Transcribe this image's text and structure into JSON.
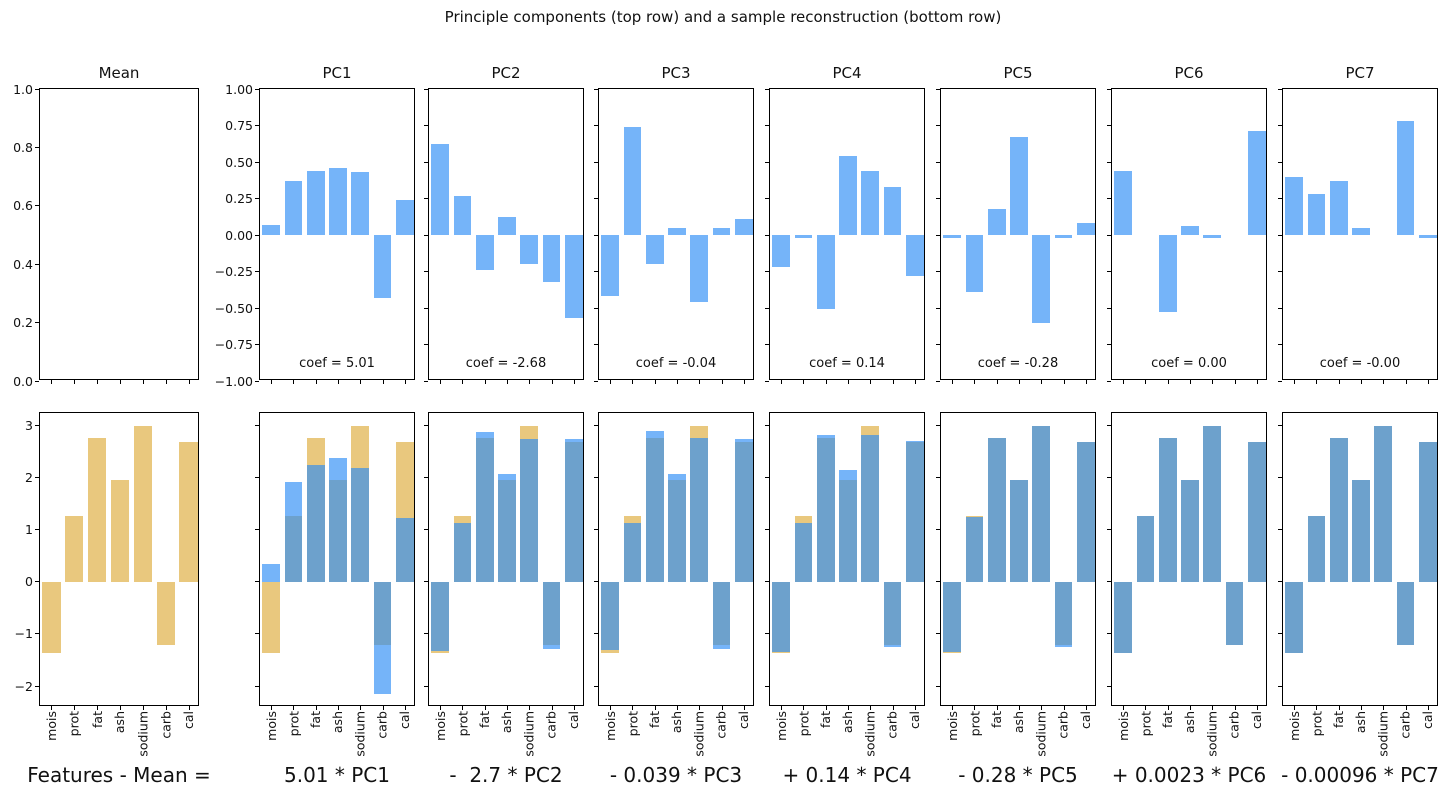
{
  "title": "Principle components (top row) and a sample reconstruction (bottom row)",
  "colors": {
    "bar_blue": "rgba(43,140,246,0.65)",
    "bar_tan": "#e9c87e",
    "axis": "#000000",
    "text": "#111111",
    "background": "#ffffff"
  },
  "formula": {
    "terms": [
      "Features - Mean =",
      "5.01 * PC1",
      "-  2.7 * PC2",
      "- 0.039 * PC3",
      "+ 0.14 * PC4",
      "- 0.28 * PC5",
      "+ 0.0023 * PC6",
      "- 0.00096 * PC7"
    ]
  },
  "chart_data": {
    "type": "bar",
    "categories": [
      "mois",
      "prot",
      "fat",
      "ash",
      "sodium",
      "carb",
      "cal"
    ],
    "top_row": {
      "description": "principal component loadings, blue bars",
      "ylim_pc": [
        -1.0,
        1.0
      ],
      "yticks_pc": [
        "1.00",
        "0.75",
        "0.50",
        "0.25",
        "0.00",
        "−0.25",
        "−0.50",
        "−0.75",
        "−1.00"
      ],
      "panels": [
        {
          "title": "Mean",
          "type": "empty",
          "ylim": [
            0.0,
            1.0
          ],
          "yticks": [
            "1.0",
            "0.8",
            "0.6",
            "0.4",
            "0.2",
            "0.0"
          ],
          "values": null,
          "coef_label": null
        },
        {
          "title": "PC1",
          "coef_label": "coef = 5.01",
          "values": [
            0.07,
            0.37,
            0.44,
            0.46,
            0.43,
            -0.43,
            0.24
          ]
        },
        {
          "title": "PC2",
          "coef_label": "coef = -2.68",
          "values": [
            0.62,
            0.27,
            -0.24,
            0.12,
            -0.2,
            -0.32,
            -0.57
          ]
        },
        {
          "title": "PC3",
          "coef_label": "coef = -0.04",
          "values": [
            -0.42,
            0.74,
            -0.2,
            0.05,
            -0.46,
            0.05,
            0.11
          ]
        },
        {
          "title": "PC4",
          "coef_label": "coef = 0.14",
          "values": [
            -0.22,
            -0.02,
            -0.51,
            0.54,
            0.44,
            0.33,
            -0.28
          ]
        },
        {
          "title": "PC5",
          "coef_label": "coef = -0.28",
          "values": [
            -0.02,
            -0.39,
            0.18,
            0.67,
            -0.6,
            -0.02,
            0.08
          ]
        },
        {
          "title": "PC6",
          "coef_label": "coef = 0.00",
          "values": [
            0.44,
            0.0,
            -0.53,
            0.06,
            -0.02,
            0.0,
            0.71
          ]
        },
        {
          "title": "PC7",
          "coef_label": "coef = -0.00",
          "values": [
            0.4,
            0.28,
            0.37,
            0.05,
            0.0,
            0.78,
            -0.02
          ]
        }
      ]
    },
    "bottom_row": {
      "description": "tan = Features - Mean target, blue = cumulative reconstruction",
      "ylim": [
        -2.4,
        3.23
      ],
      "yticks": [
        "3",
        "2",
        "1",
        "0",
        "−1",
        "−2"
      ],
      "ytick_values": [
        3,
        2,
        1,
        0,
        -1,
        -2
      ],
      "target_values": [
        -1.36,
        1.26,
        2.75,
        1.95,
        2.98,
        -1.22,
        2.68
      ],
      "reconstructions": [
        null,
        [
          0.33,
          1.91,
          2.23,
          2.36,
          2.18,
          -2.15,
          1.22
        ],
        [
          -1.33,
          1.13,
          2.87,
          2.06,
          2.73,
          -1.3,
          2.74
        ],
        [
          -1.31,
          1.13,
          2.88,
          2.06,
          2.75,
          -1.3,
          2.74
        ],
        [
          -1.35,
          1.13,
          2.8,
          2.14,
          2.81,
          -1.26,
          2.7
        ],
        [
          -1.35,
          1.24,
          2.75,
          1.95,
          2.98,
          -1.25,
          2.68
        ],
        [
          -1.36,
          1.26,
          2.75,
          1.95,
          2.98,
          -1.22,
          2.68
        ],
        [
          -1.36,
          1.26,
          2.75,
          1.95,
          2.98,
          -1.22,
          2.68
        ]
      ]
    }
  }
}
